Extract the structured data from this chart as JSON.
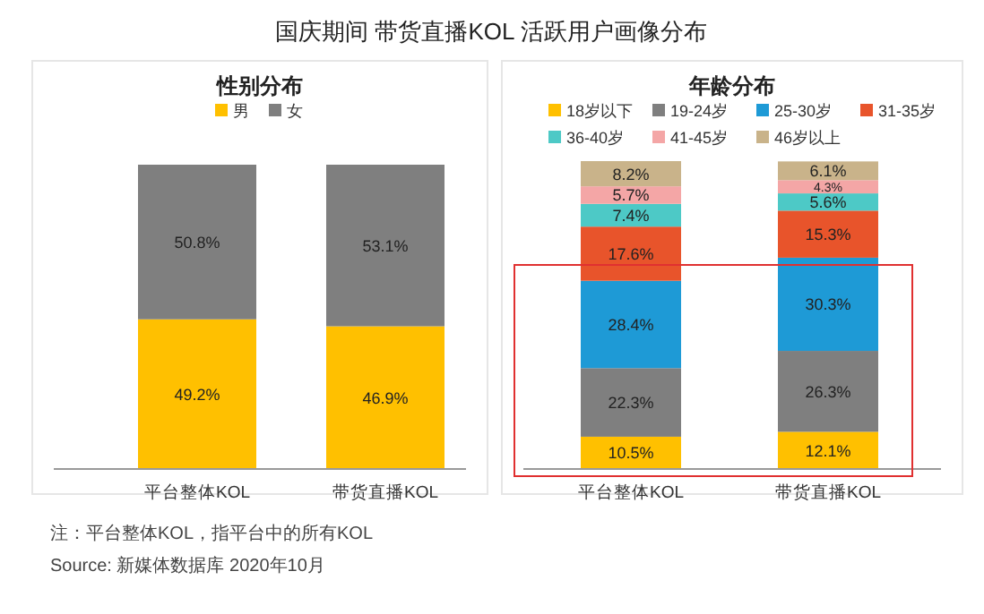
{
  "chart_data": [
    {
      "type": "other",
      "title": "国庆期间 带货直播KOL 活跃用户画像分布",
      "annotations": [
        "注：平台整体KOL，指平台中的所有KOL",
        "Source: 新媒体数据库 2020年10月"
      ]
    },
    {
      "type": "bar",
      "stacked": true,
      "title": "性别分布",
      "categories": [
        "平台整体KOL",
        "带货直播KOL"
      ],
      "legend": "top",
      "series": [
        {
          "name": "男",
          "color": "#ffc000",
          "values": [
            49.2,
            46.9
          ],
          "value_labels": [
            "49.2%",
            "46.9%"
          ]
        },
        {
          "name": "女",
          "color": "#7f7f7f",
          "values": [
            50.8,
            53.1
          ],
          "value_labels": [
            "50.8%",
            "53.1%"
          ]
        }
      ]
    },
    {
      "type": "bar",
      "stacked": true,
      "title": "年龄分布",
      "categories": [
        "平台整体KOL",
        "带货直播KOL"
      ],
      "legend": "top",
      "series": [
        {
          "name": "18岁以下",
          "color": "#ffc000",
          "values": [
            10.5,
            12.1
          ],
          "value_labels": [
            "10.5%",
            "12.1%"
          ]
        },
        {
          "name": "19-24岁",
          "color": "#7f7f7f",
          "values": [
            22.3,
            26.3
          ],
          "value_labels": [
            "22.3%",
            "26.3%"
          ]
        },
        {
          "name": "25-30岁",
          "color": "#1e9ad6",
          "values": [
            28.4,
            30.3
          ],
          "value_labels": [
            "28.4%",
            "30.3%"
          ]
        },
        {
          "name": "31-35岁",
          "color": "#e8542b",
          "values": [
            17.6,
            15.3
          ],
          "value_labels": [
            "17.6%",
            "15.3%"
          ]
        },
        {
          "name": "36-40岁",
          "color": "#4dc9c6",
          "values": [
            7.4,
            5.6
          ],
          "value_labels": [
            "7.4%",
            "5.6%"
          ]
        },
        {
          "name": "41-45岁",
          "color": "#f4a6a6",
          "values": [
            5.7,
            4.3
          ],
          "value_labels": [
            "5.7%",
            "4.3%"
          ]
        },
        {
          "name": "46岁以上",
          "color": "#c9b38a",
          "values": [
            8.2,
            6.1
          ],
          "value_labels": [
            "8.2%",
            "6.1%"
          ]
        }
      ]
    }
  ]
}
